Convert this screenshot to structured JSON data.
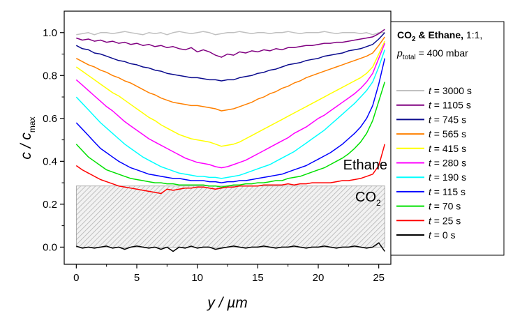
{
  "chart_data": {
    "type": "line",
    "xlabel": "y / µm",
    "ylabel_main": "c / c",
    "ylabel_sub": "max",
    "xlim": [
      -1,
      26
    ],
    "ylim": [
      -0.08,
      1.1
    ],
    "x_ticks": [
      "0",
      "5",
      "10",
      "15",
      "20",
      "25"
    ],
    "y_ticks": [
      "0.0",
      "0.2",
      "0.4",
      "0.6",
      "0.8",
      "1.0"
    ],
    "grid": false,
    "legend_position": "right",
    "legend_header": {
      "line1_bold": "CO",
      "line1_sub": "2",
      "line1_bold2": " & Ethane,",
      "line1_rest": " 1:1,",
      "line2_p": "p",
      "line2_sub": "total",
      "line2_rest": " = 400 mbar"
    },
    "annotations": {
      "ethane": "Ethane",
      "co2_main": "CO",
      "co2_sub": "2"
    },
    "co2_band": [
      0.0,
      0.285
    ],
    "legend_prefix": "t",
    "x": [
      0,
      0.5,
      1,
      1.5,
      2,
      2.5,
      3,
      3.5,
      4,
      4.5,
      5,
      5.5,
      6,
      6.5,
      7,
      7.5,
      8,
      8.5,
      9,
      9.5,
      10,
      10.5,
      11,
      11.5,
      12,
      12.5,
      13,
      13.5,
      14,
      14.5,
      15,
      15.5,
      16,
      16.5,
      17,
      17.5,
      18,
      18.5,
      19,
      19.5,
      20,
      20.5,
      21,
      21.5,
      22,
      22.5,
      23,
      23.5,
      24,
      24.5,
      25,
      25.5
    ],
    "series": [
      {
        "name": " = 3000 s",
        "color": "#c0c0c0",
        "values": [
          0.99,
          0.995,
          1.0,
          0.99,
          1.0,
          1.0,
          0.995,
          1.0,
          1.005,
          1.0,
          0.995,
          0.99,
          1.0,
          0.995,
          1.0,
          0.99,
          1.0,
          1.005,
          1.0,
          0.995,
          1.0,
          1.005,
          1.0,
          0.99,
          0.995,
          1.0,
          1.0,
          1.005,
          1.0,
          0.995,
          1.0,
          1.0,
          0.995,
          1.0,
          1.0,
          1.005,
          1.0,
          0.995,
          1.0,
          1.0,
          1.0,
          1.005,
          1.0,
          0.995,
          1.0,
          1.0,
          1.0,
          0.995,
          1.0,
          0.99,
          1.0,
          1.0
        ]
      },
      {
        "name": " = 1105 s",
        "color": "#800080",
        "values": [
          0.975,
          0.965,
          0.97,
          0.96,
          0.965,
          0.955,
          0.96,
          0.95,
          0.955,
          0.945,
          0.95,
          0.94,
          0.945,
          0.935,
          0.94,
          0.93,
          0.935,
          0.925,
          0.92,
          0.93,
          0.91,
          0.92,
          0.91,
          0.895,
          0.885,
          0.9,
          0.895,
          0.91,
          0.905,
          0.915,
          0.91,
          0.92,
          0.915,
          0.925,
          0.92,
          0.93,
          0.93,
          0.935,
          0.94,
          0.94,
          0.945,
          0.95,
          0.95,
          0.955,
          0.955,
          0.96,
          0.965,
          0.97,
          0.975,
          0.98,
          0.995,
          1.015
        ]
      },
      {
        "name": " = 745 s",
        "color": "#0b0b8e",
        "values": [
          0.94,
          0.925,
          0.92,
          0.905,
          0.9,
          0.89,
          0.88,
          0.87,
          0.865,
          0.855,
          0.85,
          0.84,
          0.835,
          0.825,
          0.82,
          0.81,
          0.805,
          0.8,
          0.795,
          0.79,
          0.79,
          0.785,
          0.78,
          0.78,
          0.775,
          0.78,
          0.78,
          0.79,
          0.795,
          0.8,
          0.81,
          0.815,
          0.825,
          0.83,
          0.84,
          0.85,
          0.855,
          0.86,
          0.87,
          0.875,
          0.88,
          0.89,
          0.895,
          0.9,
          0.905,
          0.915,
          0.92,
          0.925,
          0.935,
          0.945,
          0.97,
          1.0
        ]
      },
      {
        "name": " = 565 s",
        "color": "#ff8000",
        "values": [
          0.88,
          0.865,
          0.85,
          0.84,
          0.825,
          0.815,
          0.8,
          0.79,
          0.775,
          0.765,
          0.75,
          0.735,
          0.72,
          0.71,
          0.695,
          0.685,
          0.675,
          0.67,
          0.665,
          0.66,
          0.66,
          0.655,
          0.65,
          0.645,
          0.635,
          0.64,
          0.645,
          0.655,
          0.665,
          0.675,
          0.69,
          0.7,
          0.715,
          0.725,
          0.74,
          0.75,
          0.765,
          0.775,
          0.79,
          0.8,
          0.81,
          0.82,
          0.83,
          0.84,
          0.85,
          0.86,
          0.87,
          0.88,
          0.89,
          0.905,
          0.94,
          0.98
        ]
      },
      {
        "name": " = 415 s",
        "color": "#ffff00",
        "values": [
          0.84,
          0.82,
          0.8,
          0.78,
          0.76,
          0.74,
          0.72,
          0.705,
          0.685,
          0.665,
          0.645,
          0.625,
          0.605,
          0.59,
          0.57,
          0.555,
          0.54,
          0.525,
          0.515,
          0.505,
          0.5,
          0.495,
          0.49,
          0.48,
          0.47,
          0.475,
          0.48,
          0.49,
          0.505,
          0.52,
          0.535,
          0.55,
          0.565,
          0.58,
          0.595,
          0.61,
          0.625,
          0.64,
          0.655,
          0.67,
          0.685,
          0.7,
          0.715,
          0.73,
          0.745,
          0.76,
          0.775,
          0.79,
          0.81,
          0.84,
          0.9,
          0.96
        ]
      },
      {
        "name": " = 280 s",
        "color": "#ff00ff",
        "values": [
          0.78,
          0.755,
          0.73,
          0.705,
          0.68,
          0.655,
          0.635,
          0.61,
          0.585,
          0.565,
          0.545,
          0.525,
          0.505,
          0.49,
          0.475,
          0.46,
          0.445,
          0.43,
          0.415,
          0.405,
          0.395,
          0.39,
          0.385,
          0.375,
          0.37,
          0.375,
          0.385,
          0.395,
          0.405,
          0.42,
          0.435,
          0.45,
          0.465,
          0.48,
          0.495,
          0.51,
          0.53,
          0.545,
          0.56,
          0.58,
          0.6,
          0.615,
          0.635,
          0.655,
          0.675,
          0.695,
          0.715,
          0.74,
          0.77,
          0.81,
          0.88,
          0.95
        ]
      },
      {
        "name": " = 190 s",
        "color": "#00ffff",
        "values": [
          0.7,
          0.67,
          0.64,
          0.61,
          0.58,
          0.555,
          0.53,
          0.505,
          0.48,
          0.46,
          0.44,
          0.42,
          0.405,
          0.39,
          0.375,
          0.365,
          0.355,
          0.345,
          0.34,
          0.335,
          0.33,
          0.33,
          0.325,
          0.325,
          0.32,
          0.325,
          0.33,
          0.335,
          0.345,
          0.355,
          0.365,
          0.375,
          0.385,
          0.4,
          0.415,
          0.43,
          0.445,
          0.465,
          0.485,
          0.505,
          0.525,
          0.545,
          0.57,
          0.595,
          0.62,
          0.645,
          0.67,
          0.7,
          0.73,
          0.77,
          0.84,
          0.92
        ]
      },
      {
        "name": " = 115 s",
        "color": "#0000ff",
        "values": [
          0.58,
          0.55,
          0.52,
          0.49,
          0.46,
          0.44,
          0.42,
          0.4,
          0.385,
          0.37,
          0.36,
          0.35,
          0.34,
          0.335,
          0.33,
          0.325,
          0.32,
          0.32,
          0.315,
          0.31,
          0.31,
          0.31,
          0.305,
          0.305,
          0.3,
          0.305,
          0.305,
          0.31,
          0.31,
          0.315,
          0.32,
          0.325,
          0.33,
          0.335,
          0.34,
          0.35,
          0.36,
          0.37,
          0.38,
          0.395,
          0.41,
          0.425,
          0.44,
          0.46,
          0.48,
          0.505,
          0.53,
          0.56,
          0.6,
          0.66,
          0.76,
          0.88
        ]
      },
      {
        "name": " = 70 s",
        "color": "#00e000",
        "values": [
          0.48,
          0.45,
          0.42,
          0.4,
          0.38,
          0.36,
          0.35,
          0.34,
          0.33,
          0.32,
          0.315,
          0.31,
          0.305,
          0.3,
          0.3,
          0.295,
          0.295,
          0.29,
          0.29,
          0.29,
          0.29,
          0.29,
          0.285,
          0.285,
          0.28,
          0.285,
          0.29,
          0.29,
          0.295,
          0.295,
          0.3,
          0.3,
          0.305,
          0.31,
          0.31,
          0.32,
          0.325,
          0.33,
          0.34,
          0.35,
          0.36,
          0.37,
          0.385,
          0.4,
          0.415,
          0.435,
          0.46,
          0.49,
          0.53,
          0.59,
          0.68,
          0.77
        ]
      },
      {
        "name": " = 25 s",
        "color": "#ff0000",
        "values": [
          0.38,
          0.36,
          0.345,
          0.33,
          0.315,
          0.305,
          0.295,
          0.285,
          0.28,
          0.275,
          0.27,
          0.265,
          0.26,
          0.255,
          0.25,
          0.27,
          0.265,
          0.27,
          0.275,
          0.275,
          0.28,
          0.28,
          0.275,
          0.27,
          0.275,
          0.28,
          0.28,
          0.285,
          0.285,
          0.285,
          0.285,
          0.29,
          0.29,
          0.29,
          0.29,
          0.295,
          0.29,
          0.295,
          0.295,
          0.3,
          0.3,
          0.3,
          0.3,
          0.305,
          0.31,
          0.31,
          0.315,
          0.32,
          0.33,
          0.34,
          0.38,
          0.48
        ]
      },
      {
        "name": " = 0 s",
        "color": "#000000",
        "values": [
          0.005,
          -0.005,
          0.0,
          -0.005,
          0.0,
          0.005,
          -0.005,
          0.0,
          -0.01,
          0.0,
          0.005,
          0.0,
          -0.005,
          0.0,
          -0.01,
          0.0,
          -0.02,
          0.0,
          -0.005,
          0.005,
          -0.005,
          0.0,
          0.0,
          -0.01,
          -0.005,
          0.0,
          0.005,
          0.0,
          -0.005,
          0.0,
          0.0,
          0.005,
          0.0,
          -0.005,
          0.0,
          0.0,
          0.005,
          0.0,
          -0.005,
          0.0,
          0.0,
          0.005,
          0.0,
          -0.005,
          0.0,
          0.0,
          0.005,
          0.0,
          -0.005,
          0.0,
          0.02,
          -0.02
        ]
      }
    ]
  }
}
